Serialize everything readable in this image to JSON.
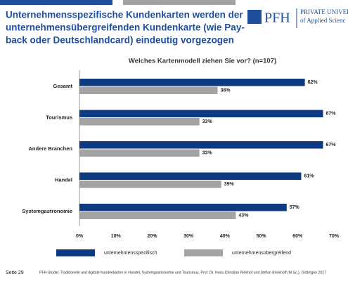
{
  "slide": {
    "title_lines": [
      "Unternehmensspezifische Kundenkarten werden der",
      "unternehmensübergreifenden Kundenkarte (wie Pay-",
      "back oder Deutschlandcard) eindeutig vorgezogen"
    ],
    "logo": {
      "mark": "PFH",
      "line1": "PRIVATE UNIVERS",
      "line2": "of Applied Scienc"
    },
    "footer": {
      "page": "Seite 29",
      "source": "PFH-Studie: Traditionelle und digitale Kundenkarten in Handel, Systemgastronomie und Tourismus, Prof. Dr. Hans-Christian Riekhof und Stefan Brinkhoff (M.Sc.), Göttingen 2017"
    }
  },
  "chart_data": {
    "type": "hbar",
    "title": "Welches Kartenmodell ziehen Sie vor? (n=107)",
    "categories": [
      "Gesamt",
      "Tourismus",
      "Andere Branchen",
      "Handel",
      "Systemgastronomie"
    ],
    "series": [
      {
        "name": "unternehmensspezifisch",
        "color": "#0d3a80",
        "values": [
          62,
          67,
          67,
          61,
          57
        ],
        "value_labels": [
          "62%",
          "67%",
          "67%",
          "61%",
          "57%"
        ]
      },
      {
        "name": "unternehmensübergreifend",
        "color": "#a3a3a3",
        "values": [
          38,
          33,
          33,
          39,
          43
        ],
        "value_labels": [
          "38%",
          "33%",
          "33%",
          "39%",
          "43%"
        ]
      }
    ],
    "xlim": [
      0,
      70
    ],
    "xticks": [
      {
        "value": 0,
        "label": "0%"
      },
      {
        "value": 10,
        "label": "10%"
      },
      {
        "value": 20,
        "label": "20%"
      },
      {
        "value": 30,
        "label": "30%"
      },
      {
        "value": 40,
        "label": "40%"
      },
      {
        "value": 50,
        "label": "50%"
      },
      {
        "value": 60,
        "label": "60%"
      },
      {
        "value": 70,
        "label": "70%"
      }
    ],
    "grid": false
  }
}
